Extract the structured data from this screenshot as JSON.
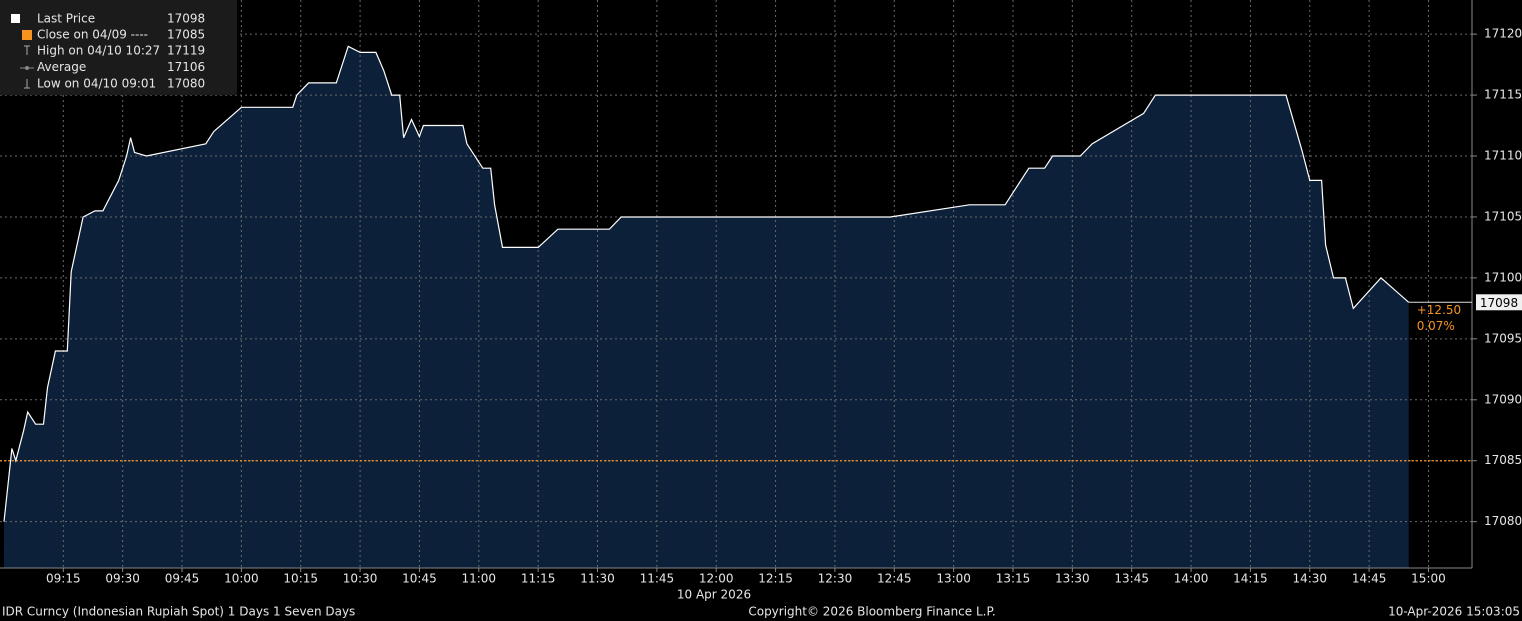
{
  "chart_data": {
    "type": "area",
    "x": [
      "09:00",
      "09:02",
      "09:03",
      "09:05",
      "09:06",
      "09:08",
      "09:10",
      "09:11",
      "09:13",
      "09:16",
      "09:17",
      "09:20",
      "09:23",
      "09:25",
      "09:29",
      "09:31",
      "09:32",
      "09:33",
      "09:36",
      "09:51",
      "09:53",
      "10:00",
      "10:13",
      "10:14",
      "10:17",
      "10:24",
      "10:27",
      "10:30",
      "10:34",
      "10:36",
      "10:38",
      "10:40",
      "10:41",
      "10:43",
      "10:45",
      "10:46",
      "10:56",
      "10:57",
      "11:01",
      "11:03",
      "11:04",
      "11:06",
      "11:15",
      "11:20",
      "11:33",
      "11:36",
      "12:44",
      "13:04",
      "13:13",
      "13:19",
      "13:23",
      "13:25",
      "13:32",
      "13:35",
      "13:48",
      "13:51",
      "14:24",
      "14:28",
      "14:30",
      "14:33",
      "14:34",
      "14:36",
      "14:39",
      "14:41",
      "14:48",
      "14:55"
    ],
    "series": [
      {
        "name": "Last Price",
        "color": "#ffffff",
        "fill": "#0c2039",
        "values": [
          17080,
          17086,
          17085,
          17087.5,
          17089,
          17088,
          17088,
          17091,
          17094,
          17094,
          17100.5,
          17105,
          17105.5,
          17105.5,
          17108,
          17110,
          17111.5,
          17110.3,
          17110,
          17111,
          17112,
          17114,
          17114,
          17115,
          17116,
          17116,
          17119,
          17118.5,
          17118.5,
          17117,
          17115,
          17115,
          17111.5,
          17113,
          17111.6,
          17112.5,
          17112.5,
          17111,
          17109,
          17109,
          17106,
          17102.5,
          17102.5,
          17104,
          17104,
          17105,
          17105,
          17106,
          17106,
          17109,
          17109,
          17110,
          17110,
          17111,
          17113.5,
          17115,
          17115,
          17110.5,
          17108,
          17108,
          17102.7,
          17100,
          17100,
          17097.5,
          17100,
          17098
        ]
      }
    ],
    "xlim": [
      "08:59",
      "15:11"
    ],
    "xticks": [
      "09:15",
      "09:30",
      "09:45",
      "10:00",
      "10:15",
      "10:30",
      "10:45",
      "11:00",
      "11:15",
      "11:30",
      "11:45",
      "12:00",
      "12:15",
      "12:30",
      "12:45",
      "13:00",
      "13:15",
      "13:30",
      "13:45",
      "14:00",
      "14:15",
      "14:30",
      "14:45",
      "15:00"
    ],
    "ylim": [
      17076.2,
      17122.8
    ],
    "yticks": [
      17080,
      17085,
      17090,
      17095,
      17100,
      17105,
      17110,
      17115,
      17120
    ],
    "grid": true,
    "x_date": "10 Apr 2026",
    "last_value": 17098,
    "change": {
      "value": 12.5,
      "label": "+12.50"
    },
    "change_pct": {
      "value": 0.07,
      "label": "0.07%"
    },
    "close_line": {
      "name": "Close on 04/09 ----",
      "value": 17085,
      "color": "#f7931e"
    },
    "legend": [
      {
        "label": "High on 04/10 10:27",
        "value": 17119
      },
      {
        "label": "Average",
        "value": 17106
      },
      {
        "label": "Low on 04/10 09:01",
        "value": 17080
      }
    ],
    "footer_left": "IDR Curncy (Indonesian Rupiah Spot) 1 Days 1 Seven Days",
    "copyright": "Copyright© 2026 Bloomberg Finance L.P.",
    "timestamp": "10-Apr-2026 15:03:05"
  }
}
